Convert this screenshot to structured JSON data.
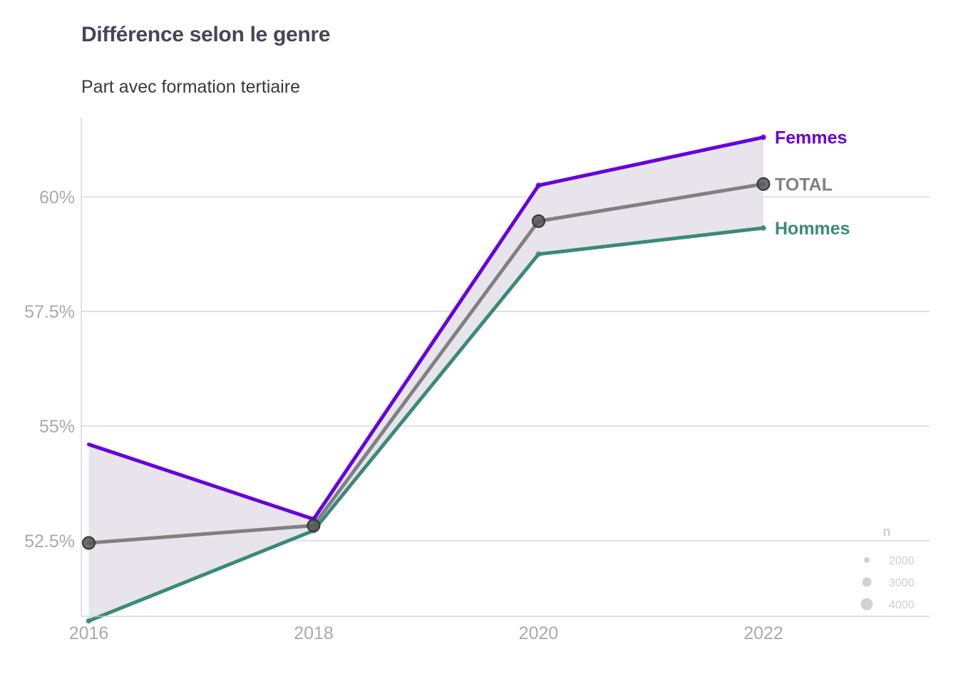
{
  "chart_data": {
    "type": "line",
    "title": "Différence selon le genre",
    "subtitle": "Part avec formation tertiaire",
    "x": [
      2016,
      2018,
      2020,
      2022
    ],
    "x_ticks": [
      "2016",
      "2018",
      "2020",
      "2022"
    ],
    "xlim": [
      2016,
      2023.45
    ],
    "ylim": [
      50.85,
      61.73
    ],
    "y_ticks": [
      52.5,
      55,
      57.5,
      60
    ],
    "y_tick_labels": [
      "52.5%",
      "55%",
      "57.5%",
      "60%"
    ],
    "grid": "horizontal",
    "ribbon": {
      "between": [
        "Hommes",
        "Femmes"
      ],
      "color": "#e4e1ea"
    },
    "series": [
      {
        "name": "Femmes",
        "color": "#6600dd",
        "values": [
          54.6,
          52.97,
          60.25,
          61.3
        ],
        "point_sizes": [
          null,
          2000,
          2000,
          2000
        ]
      },
      {
        "name": "TOTAL",
        "color": "#808080",
        "values": [
          52.45,
          52.83,
          59.47,
          60.28
        ],
        "point_sizes": [
          4000,
          4000,
          4000,
          4000
        ]
      },
      {
        "name": "Hommes",
        "color": "#3a8a78",
        "values": [
          50.75,
          52.72,
          58.75,
          59.32
        ],
        "point_sizes": [
          2000,
          2000,
          2000,
          2000
        ]
      }
    ],
    "size_legend": {
      "title": "n",
      "position": "bottom-right",
      "entries": [
        {
          "label": "2000",
          "value": 2000
        },
        {
          "label": "3000",
          "value": 3000
        },
        {
          "label": "4000",
          "value": 4000
        }
      ]
    }
  }
}
